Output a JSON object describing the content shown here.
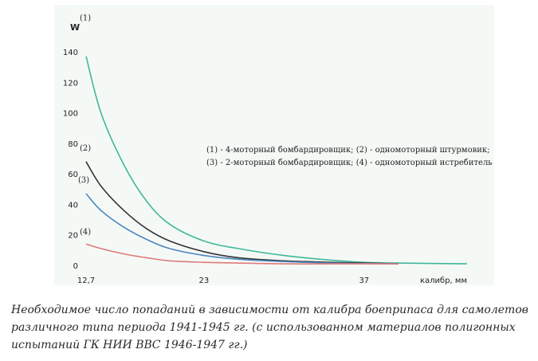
{
  "chart_data": {
    "type": "line",
    "title": "",
    "xlabel": "калибр, мм",
    "ylabel": "W",
    "ylim": [
      0,
      140
    ],
    "xlim": [
      12.7,
      46
    ],
    "x_ticks": [
      "12,7",
      "23",
      "37"
    ],
    "x_tick_values": [
      12.7,
      23,
      37
    ],
    "y_ticks": [
      0,
      20,
      40,
      60,
      80,
      100,
      120,
      140
    ],
    "grid": false,
    "legend": {
      "placement": "center-right",
      "lines": [
        "(1) - 4-моторный бомбардировщик; (2) - одномоторный штурмовик;",
        "(3) - 2-моторный бомбардировщик; (4) - одномоторный истребитель"
      ]
    },
    "series": [
      {
        "name": "(1)",
        "color": "#3fb89a",
        "x": [
          12.7,
          14,
          16,
          18,
          20,
          23,
          26,
          30,
          34,
          37,
          40,
          46
        ],
        "y": [
          137,
          100,
          66,
          42,
          27,
          16,
          11,
          6.5,
          3.5,
          2,
          1.5,
          1
        ]
      },
      {
        "name": "(2)",
        "color": "#333333",
        "x": [
          12.7,
          14,
          16,
          18,
          20,
          23,
          26,
          30,
          34,
          37,
          40
        ],
        "y": [
          68,
          52,
          36,
          24,
          16,
          9,
          5,
          3,
          2,
          1.5,
          1
        ]
      },
      {
        "name": "(3)",
        "color": "#4a86c0",
        "x": [
          12.7,
          14,
          16,
          18,
          20,
          23,
          26,
          30,
          34,
          37,
          40
        ],
        "y": [
          47,
          36,
          25,
          17,
          11,
          6.5,
          4,
          2.5,
          1.5,
          1.2,
          1
        ]
      },
      {
        "name": "(4)",
        "color": "#e07a7a",
        "x": [
          12.7,
          14,
          16,
          18,
          20,
          23,
          26,
          30,
          34,
          37,
          40
        ],
        "y": [
          14,
          11,
          7.5,
          5,
          3,
          2,
          1.5,
          1,
          1,
          1,
          1
        ]
      }
    ]
  },
  "caption": "Необходимое число попаданий в зависимости от калибра боеприпаса для самолетов различного типа периода 1941-1945 гг. (с использованном материалов полигонных испытаний ГК НИИ ВВС 1946-1947 гг.)"
}
